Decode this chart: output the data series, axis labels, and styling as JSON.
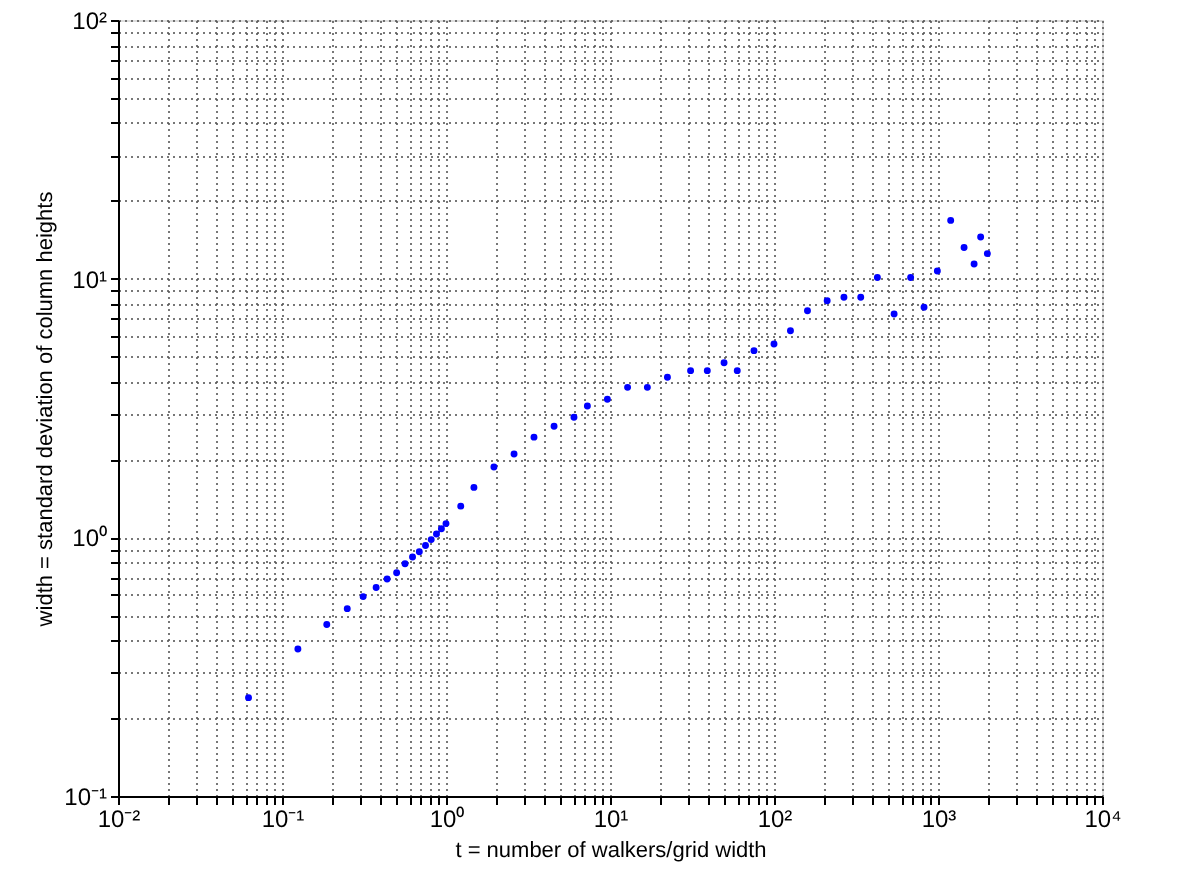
{
  "chart_data": {
    "type": "scatter",
    "xlabel": "t = number of walkers/grid width",
    "ylabel": "width = standard deviation of column heights",
    "log": "xy",
    "grid": true,
    "marker": "circle",
    "xlim": [
      0.01,
      10000
    ],
    "ylim": [
      0.1,
      100
    ],
    "xticks": [
      {
        "value": 0.01,
        "label": "10⁻²"
      },
      {
        "value": 0.02,
        "label": null
      },
      {
        "value": 0.03,
        "label": null
      },
      {
        "value": 0.04,
        "label": null
      },
      {
        "value": 0.05,
        "label": null
      },
      {
        "value": 0.06,
        "label": null
      },
      {
        "value": 0.07,
        "label": null
      },
      {
        "value": 0.08,
        "label": null
      },
      {
        "value": 0.09,
        "label": null
      },
      {
        "value": 0.1,
        "label": "10⁻¹"
      },
      {
        "value": 0.2,
        "label": null
      },
      {
        "value": 0.3,
        "label": null
      },
      {
        "value": 0.4,
        "label": null
      },
      {
        "value": 0.5,
        "label": null
      },
      {
        "value": 0.6,
        "label": null
      },
      {
        "value": 0.7,
        "label": null
      },
      {
        "value": 0.8,
        "label": null
      },
      {
        "value": 0.9,
        "label": null
      },
      {
        "value": 1,
        "label": "10⁰"
      },
      {
        "value": 2,
        "label": null
      },
      {
        "value": 3,
        "label": null
      },
      {
        "value": 4,
        "label": null
      },
      {
        "value": 5,
        "label": null
      },
      {
        "value": 6,
        "label": null
      },
      {
        "value": 7,
        "label": null
      },
      {
        "value": 8,
        "label": null
      },
      {
        "value": 9,
        "label": null
      },
      {
        "value": 10,
        "label": "10¹"
      },
      {
        "value": 20,
        "label": null
      },
      {
        "value": 30,
        "label": null
      },
      {
        "value": 40,
        "label": null
      },
      {
        "value": 50,
        "label": null
      },
      {
        "value": 60,
        "label": null
      },
      {
        "value": 70,
        "label": null
      },
      {
        "value": 80,
        "label": null
      },
      {
        "value": 90,
        "label": null
      },
      {
        "value": 100,
        "label": "10²"
      },
      {
        "value": 200,
        "label": null
      },
      {
        "value": 300,
        "label": null
      },
      {
        "value": 400,
        "label": null
      },
      {
        "value": 500,
        "label": null
      },
      {
        "value": 600,
        "label": null
      },
      {
        "value": 700,
        "label": null
      },
      {
        "value": 800,
        "label": null
      },
      {
        "value": 900,
        "label": null
      },
      {
        "value": 1000,
        "label": "10³"
      },
      {
        "value": 2000,
        "label": null
      },
      {
        "value": 3000,
        "label": null
      },
      {
        "value": 4000,
        "label": null
      },
      {
        "value": 5000,
        "label": null
      },
      {
        "value": 6000,
        "label": null
      },
      {
        "value": 7000,
        "label": null
      },
      {
        "value": 8000,
        "label": null
      },
      {
        "value": 9000,
        "label": null
      },
      {
        "value": 10000,
        "label": "10⁴"
      }
    ],
    "yticks": [
      {
        "value": 0.1,
        "label": "10⁻¹"
      },
      {
        "value": 0.2,
        "label": null
      },
      {
        "value": 0.3,
        "label": null
      },
      {
        "value": 0.4,
        "label": null
      },
      {
        "value": 0.5,
        "label": null
      },
      {
        "value": 0.6,
        "label": null
      },
      {
        "value": 0.7,
        "label": null
      },
      {
        "value": 0.8,
        "label": null
      },
      {
        "value": 0.9,
        "label": null
      },
      {
        "value": 1,
        "label": "10⁰"
      },
      {
        "value": 2,
        "label": null
      },
      {
        "value": 3,
        "label": null
      },
      {
        "value": 4,
        "label": null
      },
      {
        "value": 5,
        "label": null
      },
      {
        "value": 6,
        "label": null
      },
      {
        "value": 7,
        "label": null
      },
      {
        "value": 8,
        "label": null
      },
      {
        "value": 9,
        "label": null
      },
      {
        "value": 10,
        "label": "10¹"
      },
      {
        "value": 20,
        "label": null
      },
      {
        "value": 30,
        "label": null
      },
      {
        "value": 40,
        "label": null
      },
      {
        "value": 50,
        "label": null
      },
      {
        "value": 60,
        "label": null
      },
      {
        "value": 70,
        "label": null
      },
      {
        "value": 80,
        "label": null
      },
      {
        "value": 90,
        "label": null
      },
      {
        "value": 100,
        "label": "10²"
      }
    ],
    "series": [
      {
        "color": "#0000ff",
        "x": [
          0.0625,
          0.125,
          0.1875,
          0.25,
          0.3125,
          0.375,
          0.4375,
          0.5,
          0.5625,
          0.625,
          0.6875,
          0.75,
          0.8125,
          0.875,
          0.9375,
          1.0,
          1.23,
          1.48,
          1.96,
          2.6,
          3.44,
          4.56,
          6.03,
          7.28,
          9.64,
          12.8,
          16.9,
          22.4,
          31,
          39.2,
          49.6,
          59.7,
          75.5,
          100,
          126,
          160,
          211,
          267,
          338,
          427,
          540,
          681,
          822,
          991,
          1195,
          1442,
          1660,
          1820,
          2000
        ],
        "values": [
          0.24,
          0.37,
          0.46,
          0.53,
          0.59,
          0.64,
          0.69,
          0.73,
          0.79,
          0.84,
          0.88,
          0.93,
          0.98,
          1.03,
          1.08,
          1.13,
          1.32,
          1.56,
          1.87,
          2.1,
          2.44,
          2.69,
          2.91,
          3.22,
          3.42,
          3.8,
          3.8,
          4.16,
          4.41,
          4.41,
          4.73,
          4.41,
          5.27,
          5.59,
          6.29,
          7.52,
          8.22,
          8.47,
          8.47,
          10.1,
          7.3,
          10.1,
          7.75,
          10.7,
          16.8,
          13.2,
          11.4,
          14.5,
          12.5
        ]
      }
    ]
  }
}
